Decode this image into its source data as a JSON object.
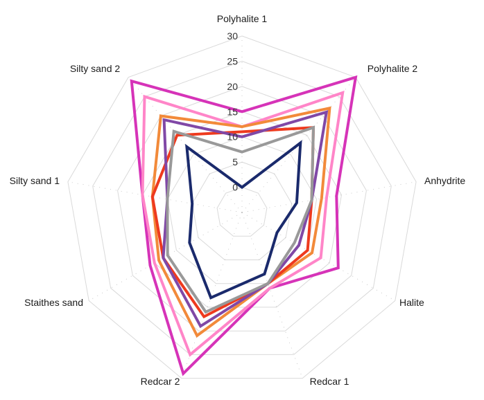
{
  "chart_data": {
    "type": "radar",
    "title": "",
    "axes": [
      "Polyhalite 1",
      "Polyhalite 2",
      "Anhydrite",
      "Halite",
      "Redcar 1",
      "Redcar 2",
      "Staithes sand",
      "Silty sand 1",
      "Silty sand 2"
    ],
    "tick_labels": [
      "0",
      "5",
      "10",
      "15",
      "20",
      "25",
      "30"
    ],
    "range": [
      -5,
      30
    ],
    "grid": true,
    "legend": "none",
    "series": [
      {
        "color": "#d633b8",
        "values": [
          15,
          30,
          14,
          17,
          11,
          29,
          16,
          15,
          29
        ]
      },
      {
        "color": "#ff85c8",
        "values": [
          12,
          26,
          12,
          13,
          11,
          25,
          15,
          15,
          25
        ]
      },
      {
        "color": "#f28a3a",
        "values": [
          12,
          22,
          11,
          11,
          10,
          21,
          14,
          13,
          20
        ]
      },
      {
        "color": "#ee3a1e",
        "values": [
          11,
          17,
          9,
          10,
          10,
          17,
          13,
          13,
          15
        ]
      },
      {
        "color": "#8048a6",
        "values": [
          10,
          21,
          9,
          8,
          10,
          19,
          13,
          10,
          19
        ]
      },
      {
        "color": "#999999",
        "values": [
          7,
          17,
          9,
          7,
          10,
          16,
          12,
          10,
          16
        ]
      },
      {
        "color": "#1a2a6c",
        "values": [
          0,
          13,
          6,
          3,
          8,
          13,
          7,
          5,
          12
        ]
      }
    ]
  }
}
